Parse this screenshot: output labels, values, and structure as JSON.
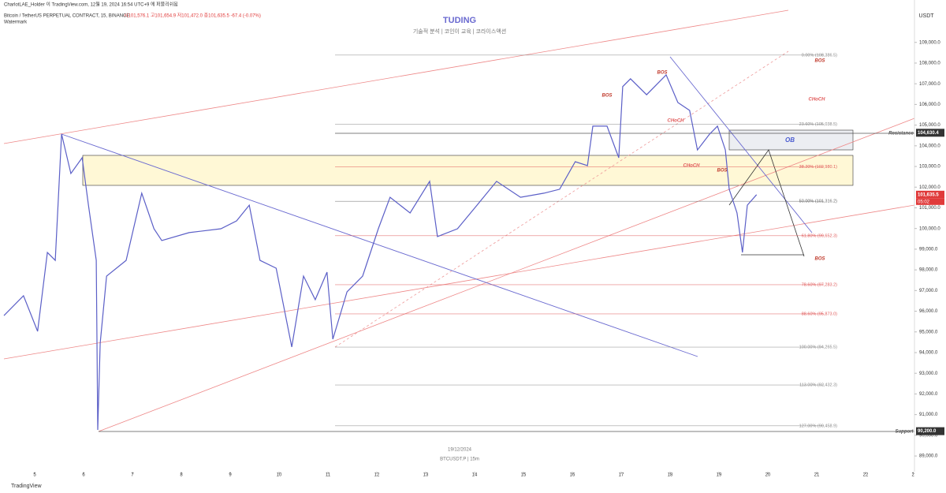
{
  "chart_data": {
    "type": "line",
    "header": "CharlotLAE_Holder 이 TradingView.com, 12월 19, 2024 16:54 UTC+9 에 퍼블리쉬됨",
    "symbol_line": "Bitcoin / TetherUS PERPETUAL CONTRACT, 15, BINANCE",
    "ohlc": "시101,576.1 고101,654.9 저101,472.0 종101,635.5 -67.4 (-0.07%)",
    "watermark": "Watermark",
    "title": "TUDING",
    "subtitle": "기술적 분석 | 코인이 교육 | 코라이스액션",
    "date": "19/12/2024",
    "ticker": "BTCUSDT.P | 15m",
    "currency": "USDT",
    "brand": "TradingView",
    "x": [
      4.37,
      4.77,
      5.06,
      5.26,
      5.42,
      5.55,
      5.74,
      5.97,
      6.1,
      6.26,
      6.29,
      6.34,
      6.47,
      6.87,
      7.19,
      7.44,
      7.6,
      8.16,
      8.81,
      9.13,
      9.39,
      9.61,
      9.94,
      10.26,
      10.5,
      10.74,
      10.98,
      11.1,
      11.39,
      11.71,
      12.03,
      12.27,
      12.68,
      13.08,
      13.24,
      13.65,
      14.05,
      14.45,
      14.94,
      15.42,
      15.74,
      16.06,
      16.31,
      16.42,
      16.71,
      16.95,
      17.03,
      17.19,
      17.52,
      17.92,
      18.16,
      18.4,
      18.56,
      18.81,
      18.97,
      19.13,
      19.21,
      19.37,
      19.48,
      19.58,
      19.77
    ],
    "series": [
      {
        "name": "BTCUSDT.P",
        "color": "#5b5fc7",
        "values": [
          95790,
          96750,
          95030,
          98840,
          98460,
          104570,
          102660,
          103420,
          101130,
          98460,
          90260,
          94460,
          97700,
          98460,
          101710,
          99990,
          99420,
          99800,
          99990,
          100370,
          101130,
          98460,
          98080,
          94270,
          97700,
          96560,
          97890,
          94650,
          96940,
          97700,
          99990,
          101510,
          100750,
          102280,
          99610,
          99990,
          101130,
          102280,
          101510,
          101710,
          101900,
          103230,
          103040,
          104950,
          104950,
          103420,
          106860,
          107240,
          106470,
          107430,
          106090,
          105710,
          103800,
          104570,
          104950,
          103800,
          101900,
          100750,
          98840,
          101130,
          101635.5
        ]
      }
    ],
    "xlim": [
      4.29,
      23.0
    ],
    "ylim": [
      88240,
      111050
    ],
    "xticks": [
      5,
      6,
      7,
      8,
      9,
      10,
      11,
      12,
      13,
      14,
      15,
      16,
      17,
      18,
      19,
      20,
      21,
      22,
      {
        "value": 22.97,
        "label": "2"
      }
    ],
    "yticks": [
      {
        "value": 89000,
        "label": "89,000.0"
      },
      {
        "value": 90000,
        "label": "90,000.0"
      },
      {
        "value": 91000,
        "label": "91,000.0"
      },
      {
        "value": 92000,
        "label": "92,000.0"
      },
      {
        "value": 93000,
        "label": "93,000.0"
      },
      {
        "value": 94000,
        "label": "94,000.0"
      },
      {
        "value": 95000,
        "label": "95,000.0"
      },
      {
        "value": 96000,
        "label": "96,000.0"
      },
      {
        "value": 97000,
        "label": "97,000.0"
      },
      {
        "value": 98000,
        "label": "98,000.0"
      },
      {
        "value": 99000,
        "label": "99,000.0"
      },
      {
        "value": 100000,
        "label": "100,000.0"
      },
      {
        "value": 101000,
        "label": "101,000.0"
      },
      {
        "value": 102000,
        "label": "102,000.0"
      },
      {
        "value": 103000,
        "label": "103,000.0"
      },
      {
        "value": 104000,
        "label": "104,000.0"
      },
      {
        "value": 105000,
        "label": "105,000.0"
      },
      {
        "value": 106000,
        "label": "106,000.0"
      },
      {
        "value": 107000,
        "label": "107,000.0"
      },
      {
        "value": 108000,
        "label": "108,000.0"
      },
      {
        "value": 109000,
        "label": "109,000.0"
      }
    ],
    "fib_levels": [
      {
        "value": 108386.5,
        "label": "0.00% (108,386.5)",
        "color": "#888888"
      },
      {
        "value": 105038.5,
        "label": "23.60% (105,038.5)",
        "color": "#888888"
      },
      {
        "value": 102980.1,
        "label": "38.20% (102,980.1)",
        "color": "#e05a5a"
      },
      {
        "value": 101316.2,
        "label": "50.00% (101,316.2)",
        "color": "#666666"
      },
      {
        "value": 99652.3,
        "label": "61.80% (99,652.3)",
        "color": "#e05a5a"
      },
      {
        "value": 97283.2,
        "label": "78.60% (97,283.2)",
        "color": "#e05a5a"
      },
      {
        "value": 95873.0,
        "label": "88.60% (95,873.0)",
        "color": "#e05a5a"
      },
      {
        "value": 94265.5,
        "label": "100.00% (94,265.5)",
        "color": "#888888"
      },
      {
        "value": 92432.3,
        "label": "113.00% (92,432.3)",
        "color": "#888888"
      },
      {
        "value": 90458.9,
        "label": "127.00% (90,458.9)",
        "color": "#888888"
      }
    ],
    "price_labels": [
      {
        "value": 104630.4,
        "label": "104,630.4",
        "color": "#333333"
      },
      {
        "value": 101635.5,
        "label": "101,635.5",
        "color": "#e03a3a"
      },
      {
        "value": 90200.0,
        "label": "90,200.0",
        "color": "#333333"
      }
    ],
    "countdown": "05:02",
    "annotations": [
      "BOS",
      "BOS",
      "BOS",
      "CHoCH",
      "CHoCH",
      "CHoCH",
      "BOS",
      "OB",
      "BOS",
      "Resistance",
      "Support"
    ]
  }
}
